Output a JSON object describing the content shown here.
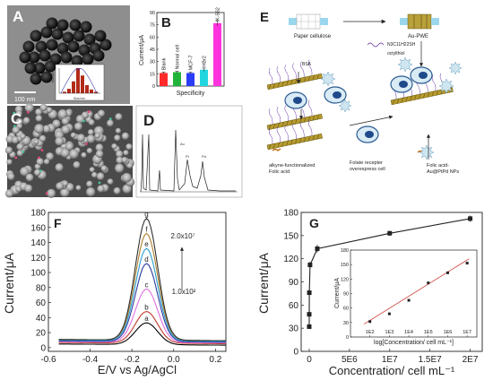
{
  "panels": {
    "A": {
      "letter": "A",
      "scalebar": "100 nm",
      "inset": {
        "ylabel": "Number/%",
        "xlabel": "Size/nm",
        "values": [
          2,
          6,
          16,
          34,
          24,
          11,
          5,
          2
        ]
      }
    },
    "C": {
      "letter": "C"
    },
    "D": {
      "letter": "D",
      "peaks": [
        "Au",
        "Pt",
        "Pd",
        "Pd"
      ]
    },
    "E": {
      "letter": "E",
      "labels": {
        "paper": "Paper cellulose",
        "pwe": "Au-PWE",
        "thiol_formula": "N3C11H22SH",
        "thiol_name": "octylthiol",
        "bsa": "BSA",
        "folic": "alkyne-functionalized\nFolic acid",
        "cell": "Folate recepter\noverexpress cell",
        "nps": "Folic acid-\nAu@PtPd NPs"
      }
    }
  },
  "chart_data": [
    {
      "panel": "B",
      "type": "bar",
      "title": "",
      "categories": [
        "Blank",
        "Normal cell",
        "MCF-7",
        "HBr2",
        "K-562"
      ],
      "values": [
        16,
        17,
        16,
        20,
        77
      ],
      "errors": [
        1,
        1,
        1,
        2,
        3
      ],
      "colors": [
        "#ff2a2a",
        "#22b33a",
        "#2a3cf5",
        "#22d6e0",
        "#ff33dd"
      ],
      "xlabel": "Specificity",
      "ylabel": "Current/μA",
      "ylim": [
        0,
        90
      ],
      "yticks": [
        0,
        15,
        30,
        45,
        60,
        75,
        90
      ],
      "grid": false
    },
    {
      "panel": "F",
      "type": "line",
      "title": "",
      "xlabel": "E/V vs Ag/AgCl",
      "ylabel": "Current/μA",
      "xlim": [
        -0.6,
        0.25
      ],
      "ylim": [
        -5,
        180
      ],
      "xticks": [
        "-0.6",
        "-0.4",
        "-0.2",
        "0.0",
        "0.2"
      ],
      "xtick_values": [
        -0.6,
        -0.4,
        -0.2,
        0.0,
        0.2
      ],
      "yticks": [
        0,
        20,
        40,
        60,
        80,
        100,
        120,
        140,
        160,
        180
      ],
      "peak_x": -0.13,
      "series": [
        {
          "name": "a",
          "color": "#000000",
          "peak": 33,
          "base": 4
        },
        {
          "name": "b",
          "color": "#c0392b",
          "peak": 48,
          "base": 6
        },
        {
          "name": "c",
          "color": "#e070e0",
          "peak": 78,
          "base": 7
        },
        {
          "name": "d",
          "color": "#2a3aa0",
          "peak": 112,
          "base": 8
        },
        {
          "name": "e",
          "color": "#2a9fd0",
          "peak": 132,
          "base": 9
        },
        {
          "name": "f",
          "color": "#b08030",
          "peak": 152,
          "base": 10
        },
        {
          "name": "g",
          "color": "#303030",
          "peak": 172,
          "base": 10
        }
      ],
      "annotations": {
        "high": "2.0x10⁷",
        "low": "1.0x10²"
      },
      "grid": false
    },
    {
      "panel": "G",
      "type": "scatter",
      "title": "",
      "xlabel": "Concentration/ cell mL⁻¹",
      "ylabel": "Current/μA",
      "xlim": [
        -1000000,
        21500000
      ],
      "ylim": [
        0,
        180
      ],
      "xticks": [
        "0",
        "5E6",
        "1E7",
        "1.5E7",
        "2E7"
      ],
      "xtick_values": [
        0,
        5000000,
        10000000,
        15000000,
        20000000
      ],
      "yticks": [
        0,
        30,
        60,
        90,
        120,
        150,
        180
      ],
      "x": [
        100,
        1000,
        10000,
        100000,
        1000000,
        10000000,
        20000000
      ],
      "y": [
        32,
        48,
        76,
        112,
        133,
        153,
        172
      ],
      "errors": [
        2,
        3,
        3,
        4,
        5,
        3,
        4
      ],
      "inset": {
        "xlabel": "log[Concentration/ cell mL⁻¹]",
        "ylabel": "Current/μA",
        "xticks": [
          "1E2",
          "1E3",
          "1E4",
          "1E5",
          "1E6",
          "1E7"
        ],
        "xtick_values": [
          2,
          3,
          4,
          5,
          6,
          7
        ],
        "xlim": [
          1,
          7.5
        ],
        "ylim": [
          0,
          180
        ],
        "yticks": [
          0,
          30,
          60,
          90,
          120,
          150,
          180
        ],
        "x": [
          2,
          3,
          4,
          5,
          6,
          7
        ],
        "y": [
          32,
          48,
          76,
          112,
          133,
          153
        ]
      },
      "grid": false
    }
  ]
}
